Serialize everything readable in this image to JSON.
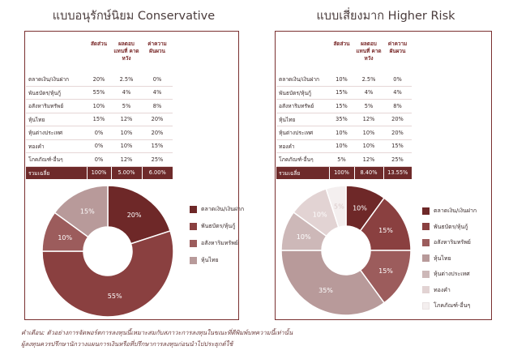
{
  "colors": {
    "s1": "#6e2828",
    "s2": "#8a4040",
    "s3": "#9c5c5c",
    "s4": "#b89a9a",
    "s5": "#cdb8b8",
    "s6": "#e2d3d3",
    "s7": "#f4efef",
    "frame": "#7a3030",
    "total_bg": "#6e2a2a"
  },
  "headers": {
    "asset": "",
    "weight": "สัดส่วน",
    "return": "ผลตอบ แทนที่ คาดหวัง",
    "risk": "ค่าความ ผันผวน"
  },
  "footnote": {
    "line1": "คำเตือน:  ตัวอย่างการจัดพอร์ตการลงทุนนี้เหมาะสมกับสภาวะการลงทุนในขณะที่ตีพิมพ์บทความนี้เท่านั้น",
    "line2": "ผู้ลงทุนควรปรึกษานักวางแผนการเงินหรือที่ปรึกษาการลงทุนก่อนนำไปประยุกต์ใช้"
  },
  "chart_data": [
    {
      "type": "pie",
      "title": "แบบอนุรักษ์นิยม Conservative",
      "table": {
        "rows": [
          {
            "asset": "ตลาดเงิน/เงินฝาก",
            "weight": "20%",
            "return": "2.5%",
            "risk": "0%"
          },
          {
            "asset": "พันธบัตร/หุ้นกู้",
            "weight": "55%",
            "return": "4%",
            "risk": "4%"
          },
          {
            "asset": "อสังหาริมทรัพย์",
            "weight": "10%",
            "return": "5%",
            "risk": "8%"
          },
          {
            "asset": "หุ้นไทย",
            "weight": "15%",
            "return": "12%",
            "risk": "20%"
          },
          {
            "asset": "หุ้นต่างประเทศ",
            "weight": "0%",
            "return": "10%",
            "risk": "20%"
          },
          {
            "asset": "ทองคำ",
            "weight": "0%",
            "return": "10%",
            "risk": "15%"
          },
          {
            "asset": "โภคภัณฑ์-อื่นๆ",
            "weight": "0%",
            "return": "12%",
            "risk": "25%"
          }
        ],
        "total": {
          "asset": "รวมเฉลี่ย",
          "weight": "100%",
          "return": "5.00%",
          "risk": "6.00%"
        }
      },
      "categories": [
        "ตลาดเงิน/เงินฝาก",
        "พันธบัตร/หุ้นกู้",
        "อสังหาริมทรัพย์",
        "หุ้นไทย"
      ],
      "values": [
        20,
        55,
        10,
        15
      ],
      "labels": [
        "20%",
        "55%",
        "10%",
        "15%"
      ],
      "colors": [
        "#6e2828",
        "#8a4040",
        "#9c5c5c",
        "#b89a9a"
      ],
      "legend": [
        "ตลาดเงิน/เงินฝาก",
        "พันธบัตร/หุ้นกู้",
        "อสังหาริมทรัพย์",
        "หุ้นไทย"
      ]
    },
    {
      "type": "pie",
      "title": "แบบเสี่ยงมาก Higher Risk",
      "table": {
        "rows": [
          {
            "asset": "ตลาดเงิน/เงินฝาก",
            "weight": "10%",
            "return": "2.5%",
            "risk": "0%"
          },
          {
            "asset": "พันธบัตร/หุ้นกู้",
            "weight": "15%",
            "return": "4%",
            "risk": "4%"
          },
          {
            "asset": "อสังหาริมทรัพย์",
            "weight": "15%",
            "return": "5%",
            "risk": "8%"
          },
          {
            "asset": "หุ้นไทย",
            "weight": "35%",
            "return": "12%",
            "risk": "20%"
          },
          {
            "asset": "หุ้นต่างประเทศ",
            "weight": "10%",
            "return": "10%",
            "risk": "20%"
          },
          {
            "asset": "ทองคำ",
            "weight": "10%",
            "return": "10%",
            "risk": "15%"
          },
          {
            "asset": "โภคภัณฑ์-อื่นๆ",
            "weight": "5%",
            "return": "12%",
            "risk": "25%"
          }
        ],
        "total": {
          "asset": "รวมเฉลี่ย",
          "weight": "100%",
          "return": "8.40%",
          "risk": "13.55%"
        }
      },
      "categories": [
        "ตลาดเงิน/เงินฝาก",
        "พันธบัตร/หุ้นกู้",
        "อสังหาริมทรัพย์",
        "หุ้นไทย",
        "หุ้นต่างประเทศ",
        "ทองคำ",
        "โภคภัณฑ์-อื่นๆ"
      ],
      "values": [
        10,
        15,
        15,
        35,
        10,
        10,
        5
      ],
      "labels": [
        "10%",
        "15%",
        "15%",
        "35%",
        "10%",
        "10%",
        "5%"
      ],
      "colors": [
        "#6e2828",
        "#8a4040",
        "#9c5c5c",
        "#b89a9a",
        "#cdb8b8",
        "#e2d3d3",
        "#f4efef"
      ],
      "legend": [
        "ตลาดเงิน/เงินฝาก",
        "พันธบัตร/หุ้นกู้",
        "อสังหาริมทรัพย์",
        "หุ้นไทย",
        "หุ้นต่างประเทศ",
        "ทองคำ",
        "โภคภัณฑ์-อื่นๆ"
      ]
    }
  ]
}
